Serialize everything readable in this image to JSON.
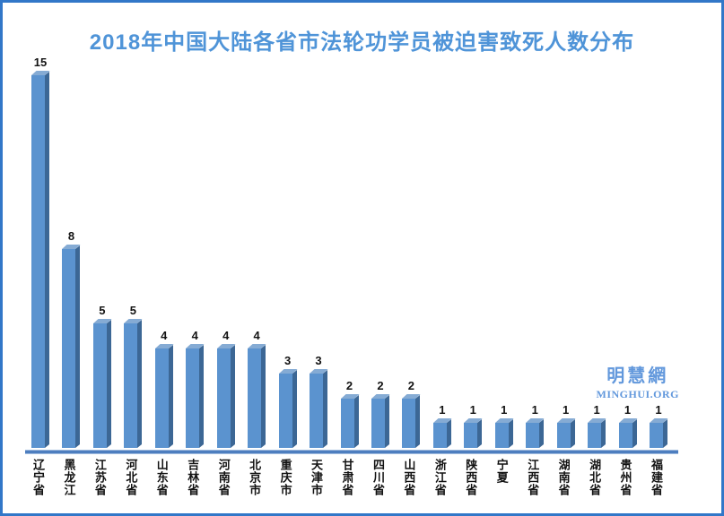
{
  "title": "2018年中国大陆各省市法轮功学员被迫害致死人数分布",
  "watermark": {
    "cn": "明慧網",
    "en": "MINGHUI.ORG"
  },
  "colors": {
    "border": "#3277c8",
    "title": "#4f94d8",
    "bar_face": "#5b93cf",
    "bar_side": "#3c6795",
    "bar_top": "#85abd4",
    "axis_main": "#4d7ebf",
    "axis_light": "#9fbade",
    "watermark": "#6298dc",
    "label": "#121212"
  },
  "chart_data": {
    "type": "bar",
    "title": "2018年中国大陆各省市法轮功学员被迫害致死人数分布",
    "categories": [
      "辽宁省",
      "黑龙江",
      "江苏省",
      "河北省",
      "山东省",
      "吉林省",
      "河南省",
      "北京市",
      "重庆市",
      "天津市",
      "甘肃省",
      "四川省",
      "山西省",
      "浙江省",
      "陕西省",
      "宁夏",
      "江西省",
      "湖南省",
      "湖北省",
      "贵州省",
      "福建省"
    ],
    "values": [
      15,
      8,
      5,
      5,
      4,
      4,
      4,
      4,
      3,
      3,
      2,
      2,
      2,
      1,
      1,
      1,
      1,
      1,
      1,
      1,
      1
    ],
    "xlabel": "",
    "ylabel": "",
    "ylim": [
      0,
      15
    ],
    "grid": false,
    "legend": false,
    "data_labels": true,
    "bar_style": "3d",
    "orientation": "vertical"
  }
}
